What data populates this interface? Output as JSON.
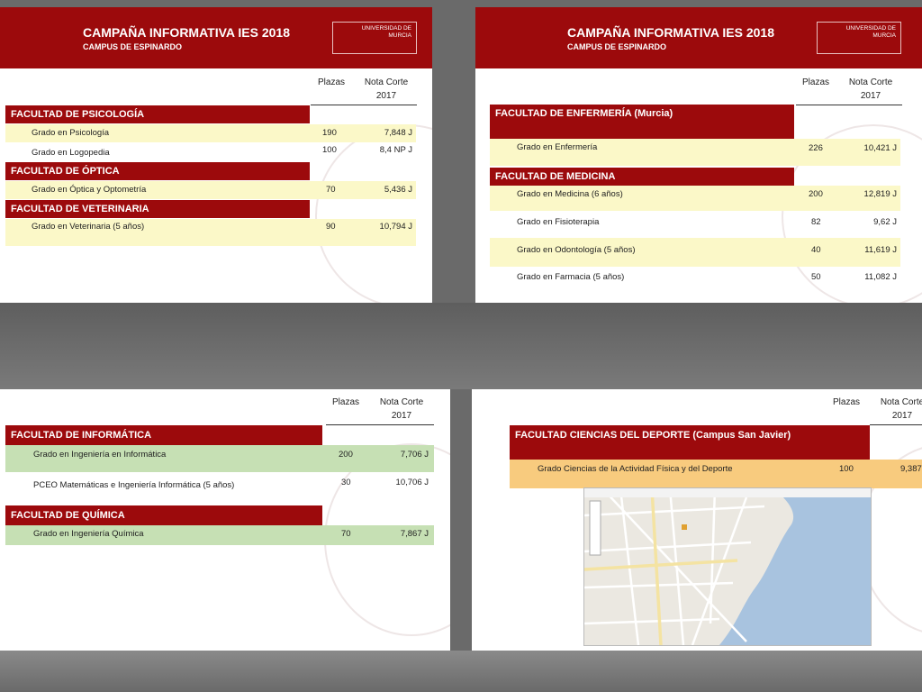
{
  "header": {
    "title": "CAMPAÑA INFORMATIVA IES 2018",
    "subtitle": "CAMPUS DE ESPINARDO",
    "logo_line1": "UNIVERSIDAD DE",
    "logo_line2": "MURCIA"
  },
  "columns": {
    "plazas": "Plazas",
    "nota": "Nota Corte",
    "year": "2017"
  },
  "slide1": {
    "faculties": [
      {
        "name": "FACULTAD DE PSICOLOGÍA",
        "rows": [
          {
            "grado": "Grado en Psicología",
            "plazas": "190",
            "nota": "7,848 J"
          },
          {
            "grado": "Grado en Logopedia",
            "plazas": "100",
            "nota": "8,4 NP J"
          }
        ]
      },
      {
        "name": "FACULTAD DE ÓPTICA",
        "rows": [
          {
            "grado": "Grado en Óptica y Optometría",
            "plazas": "70",
            "nota": "5,436 J"
          }
        ]
      },
      {
        "name": "FACULTAD DE VETERINARIA",
        "rows": [
          {
            "grado": "Grado en Veterinaria (5 años)",
            "plazas": "90",
            "nota": "10,794 J"
          }
        ]
      }
    ]
  },
  "slide2": {
    "faculties": [
      {
        "name": "FACULTAD DE ENFERMERÍA (Murcia)",
        "rows": [
          {
            "grado": "Grado en Enfermería",
            "plazas": "226",
            "nota": "10,421 J"
          }
        ]
      },
      {
        "name": "FACULTAD DE MEDICINA",
        "rows": [
          {
            "grado": "Grado en Medicina (6 años)",
            "plazas": "200",
            "nota": "12,819 J"
          },
          {
            "grado": "Grado en Fisioterapia",
            "plazas": "82",
            "nota": "9,62 J"
          },
          {
            "grado": "Grado en Odontología (5 años)",
            "plazas": "40",
            "nota": "11,619 J"
          },
          {
            "grado": "Grado en Farmacia (5 años)",
            "plazas": "50",
            "nota": "11,082 J"
          }
        ]
      }
    ]
  },
  "slide3": {
    "faculties": [
      {
        "name": "FACULTAD DE INFORMÁTICA",
        "rows": [
          {
            "grado": "Grado en Ingeniería en Informática",
            "plazas": "200",
            "nota": "7,706 J"
          },
          {
            "grado": "PCEO Matemáticas e Ingeniería Informática (5 años)",
            "plazas": "30",
            "nota": "10,706 J"
          }
        ]
      },
      {
        "name": "FACULTAD DE QUÍMICA",
        "rows": [
          {
            "grado": "Grado en Ingeniería Química",
            "plazas": "70",
            "nota": "7,867 J"
          }
        ]
      }
    ]
  },
  "slide4": {
    "faculties": [
      {
        "name": "FACULTAD CIENCIAS DEL DEPORTE (Campus San Javier)",
        "rows": [
          {
            "grado": "Grado Ciencias de la Actividad Física y del Deporte",
            "plazas": "100",
            "nota": "9,387"
          }
        ]
      }
    ]
  },
  "colors": {
    "brand": "#9c0a0c",
    "yellow_row": "#fbf8c8",
    "green_row": "#c6e0b4",
    "orange_row": "#f8cb7e"
  }
}
